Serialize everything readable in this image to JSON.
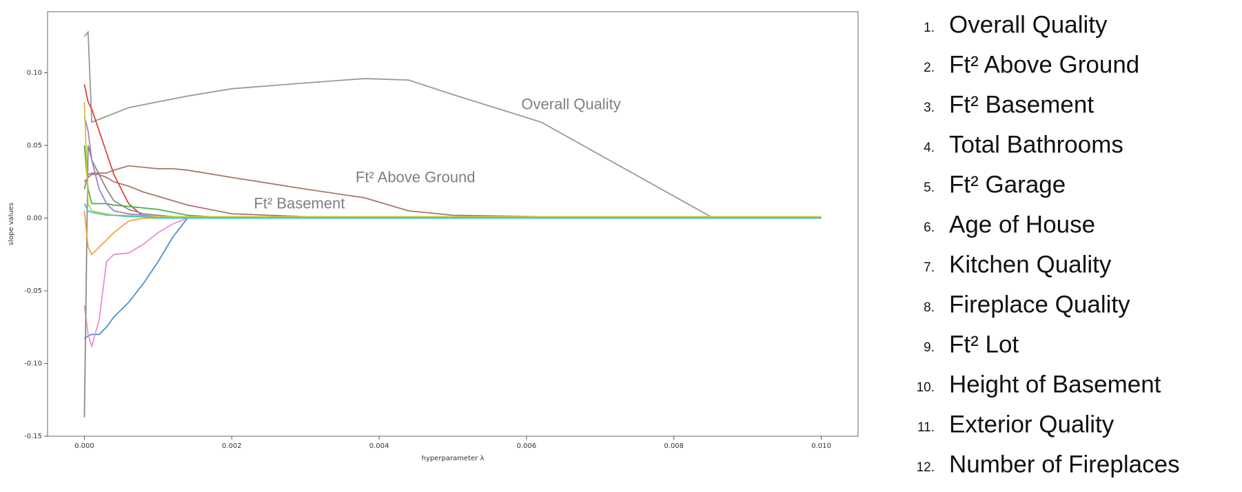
{
  "chart_data": {
    "type": "line",
    "x_label": "hyperparameter λ",
    "y_label": "slope values",
    "xlim": [
      -0.0005,
      0.0105
    ],
    "ylim": [
      -0.15,
      0.142
    ],
    "xticks": [
      {
        "value": 0,
        "label": "0.000"
      },
      {
        "value": 0.002,
        "label": "0.002"
      },
      {
        "value": 0.004,
        "label": "0.004"
      },
      {
        "value": 0.006,
        "label": "0.006"
      },
      {
        "value": 0.008,
        "label": "0.008"
      },
      {
        "value": 0.01,
        "label": "0.010"
      }
    ],
    "yticks": [
      {
        "value": 0.1,
        "label": "0.10"
      },
      {
        "value": 0.05,
        "label": "0.05"
      },
      {
        "value": 0,
        "label": "0.00"
      },
      {
        "value": -0.05,
        "label": "-0.05"
      },
      {
        "value": -0.1,
        "label": "-0.10"
      },
      {
        "value": -0.15,
        "label": "-0.15"
      }
    ],
    "grid": false,
    "x": [
      0,
      5e-05,
      0.0001,
      0.0002,
      0.0003,
      0.0004,
      0.0006,
      0.0008,
      0.001,
      0.0012,
      0.0014,
      0.002,
      0.003,
      0.0038,
      0.0044,
      0.005,
      0.0062,
      0.0085,
      0.01
    ],
    "series": [
      {
        "color": "#999999",
        "values": [
          0.125,
          0.128,
          0.066,
          0.068,
          0.07,
          0.072,
          0.076,
          0.078,
          0.08,
          0.082,
          0.084,
          0.089,
          0.093,
          0.096,
          0.095,
          0.085,
          0.066,
          0.001,
          0.001
        ]
      },
      {
        "color": "#a9776c",
        "values": [
          0.02,
          0.03,
          0.031,
          0.031,
          0.031,
          0.033,
          0.036,
          0.035,
          0.034,
          0.034,
          0.033,
          0.028,
          0.02,
          0.014,
          0.005,
          0.002,
          0.001,
          0.001,
          0.001
        ]
      },
      {
        "color": "#a9776c",
        "values": [
          0.025,
          0.028,
          0.03,
          0.03,
          0.028,
          0.025,
          0.022,
          0.018,
          0.015,
          0.012,
          0.009,
          0.003,
          0.001,
          0.001,
          0.001,
          0.001,
          0.001,
          0.001,
          0.001
        ]
      },
      {
        "color": "#4a90cf",
        "values": [
          -0.083,
          -0.081,
          -0.08,
          -0.08,
          -0.075,
          -0.068,
          -0.058,
          -0.045,
          -0.03,
          -0.013,
          0.0,
          0.0,
          0.0,
          0.0,
          0.0,
          0.0,
          0.0,
          0.0,
          0.0
        ]
      },
      {
        "color": "#ea8fd0",
        "values": [
          -0.06,
          -0.08,
          -0.088,
          -0.07,
          -0.03,
          -0.025,
          -0.024,
          -0.018,
          -0.01,
          -0.004,
          0.0,
          0.0,
          0.0,
          0.0,
          0.0,
          0.0,
          0.0,
          0.0,
          0.0
        ]
      },
      {
        "color": "#e0403a",
        "values": [
          0.092,
          0.08,
          0.075,
          0.06,
          0.045,
          0.03,
          0.01,
          0.001,
          0.001,
          0.001,
          0.001,
          0.001,
          0.001,
          0.001,
          0.001,
          0.001,
          0.001,
          0.001,
          0.001
        ]
      },
      {
        "color": "#8a8a8a",
        "values": [
          -0.137,
          0.05,
          0.04,
          0.03,
          0.02,
          0.012,
          0.006,
          0.003,
          0.002,
          0.001,
          0.001,
          0.0,
          0.0,
          0.0,
          0.0,
          0.0,
          0.0,
          0.0,
          0.0
        ]
      },
      {
        "color": "#f5a040",
        "values": [
          0.005,
          -0.02,
          -0.025,
          -0.02,
          -0.015,
          -0.01,
          -0.002,
          0.0,
          0.0,
          0.0,
          0.0,
          0.0,
          0.0,
          0.0,
          0.0,
          0.0,
          0.0,
          0.0,
          0.0
        ]
      },
      {
        "color": "#4cb04c",
        "values": [
          0.05,
          0.02,
          0.01,
          0.01,
          0.01,
          0.009,
          0.008,
          0.007,
          0.006,
          0.004,
          0.002,
          0.0,
          0.0,
          0.0,
          0.0,
          0.0,
          0.0,
          0.0,
          0.0
        ]
      },
      {
        "color": "#a57fcc",
        "values": [
          0.07,
          0.06,
          0.04,
          0.02,
          0.01,
          0.005,
          0.003,
          0.002,
          0.001,
          0.0,
          0.0,
          0.0,
          0.0,
          0.0,
          0.0,
          0.0,
          0.0,
          0.0,
          0.0
        ]
      },
      {
        "color": "#c8c93a",
        "values": [
          0.08,
          0.01,
          0.005,
          0.004,
          0.003,
          0.002,
          0.002,
          0.001,
          0.001,
          0.001,
          0.001,
          0.001,
          0.001,
          0.001,
          0.001,
          0.001,
          0.001,
          0.001,
          0.001
        ]
      },
      {
        "color": "#3cc6d6",
        "values": [
          0.01,
          0.005,
          0.004,
          0.003,
          0.002,
          0.002,
          0.001,
          0.001,
          0.0,
          0.0,
          0.0,
          0.0,
          0.0,
          0.0,
          0.0,
          0.0,
          0.0,
          0.0,
          0.0
        ]
      }
    ],
    "annotations": [
      {
        "text": "Overall Quality",
        "x": 0.00593,
        "y": 0.0776
      },
      {
        "text": "Ft² Above Ground",
        "x": 0.00368,
        "y": 0.0274
      },
      {
        "text": "Ft² Basement",
        "x": 0.0023,
        "y": 0.0094
      }
    ]
  },
  "feature_list": [
    {
      "number": "1.",
      "label": "Overall Quality"
    },
    {
      "number": "2.",
      "label": "Ft² Above Ground"
    },
    {
      "number": "3.",
      "label": "Ft² Basement"
    },
    {
      "number": "4.",
      "label": "Total Bathrooms"
    },
    {
      "number": "5.",
      "label": "Ft² Garage"
    },
    {
      "number": "6.",
      "label": "Age of House"
    },
    {
      "number": "7.",
      "label": "Kitchen Quality"
    },
    {
      "number": "8.",
      "label": "Fireplace Quality"
    },
    {
      "number": "9.",
      "label": "Ft² Lot"
    },
    {
      "number": "10.",
      "label": "Height of Basement"
    },
    {
      "number": "11.",
      "label": "Exterior Quality"
    },
    {
      "number": "12.",
      "label": "Number of Fireplaces"
    }
  ]
}
